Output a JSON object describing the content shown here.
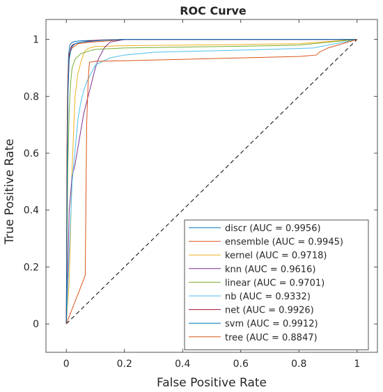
{
  "chart_data": {
    "type": "line",
    "title": "ROC Curve",
    "xlabel": "False Positive Rate",
    "ylabel": "True Positive Rate",
    "xlim": [
      -0.07,
      1.07
    ],
    "ylim": [
      -0.1,
      1.07
    ],
    "xticks": [
      0,
      0.2,
      0.4,
      0.6,
      0.8,
      1
    ],
    "xtick_labels": [
      "0",
      "0.2",
      "0.4",
      "0.6",
      "0.8",
      "1"
    ],
    "yticks": [
      0,
      0.2,
      0.4,
      0.6,
      0.8,
      1
    ],
    "ytick_labels": [
      "0",
      "0.2",
      "0.4",
      "0.6",
      "0.8",
      "1"
    ],
    "grid": false,
    "legend_position": "bottom-right",
    "reference_line": {
      "style": "dashed",
      "color": "#000000",
      "x": [
        0,
        1
      ],
      "y": [
        0,
        1
      ]
    },
    "series": [
      {
        "name": "discr (AUC = 0.9956)",
        "color": "#0072BD",
        "x": [
          0,
          0.003,
          0.005,
          0.008,
          0.012,
          0.02,
          0.03,
          0.05,
          0.1,
          0.15,
          0.2,
          0.4,
          0.7,
          1
        ],
        "y": [
          0,
          0.5,
          0.85,
          0.95,
          0.98,
          0.99,
          0.993,
          0.995,
          0.997,
          0.998,
          1,
          1,
          1,
          1
        ]
      },
      {
        "name": "ensemble (AUC = 0.9945)",
        "color": "#D95319",
        "x": [
          0,
          0.002,
          0.004,
          0.007,
          0.01,
          0.02,
          0.04,
          0.08,
          0.15,
          0.2,
          0.5,
          1
        ],
        "y": [
          0,
          0.6,
          0.8,
          0.9,
          0.95,
          0.97,
          0.985,
          0.99,
          0.995,
          1,
          1,
          1
        ]
      },
      {
        "name": "kernel (AUC = 0.9718)",
        "color": "#EDB120",
        "x": [
          0,
          0.01,
          0.02,
          0.03,
          0.04,
          0.05,
          0.06,
          0.065,
          0.07,
          0.08,
          0.1,
          0.2,
          0.4,
          0.6,
          0.8,
          1
        ],
        "y": [
          0,
          0.15,
          0.55,
          0.8,
          0.88,
          0.92,
          0.95,
          0.96,
          0.965,
          0.97,
          0.975,
          0.978,
          0.98,
          0.982,
          0.985,
          1
        ]
      },
      {
        "name": "knn (AUC = 0.9616)",
        "color": "#7E2F8E",
        "x": [
          0,
          0.005,
          0.01,
          0.02,
          0.03,
          0.04,
          0.05,
          0.06,
          0.07,
          0.08,
          0.09,
          0.1,
          0.11,
          0.12,
          0.13,
          0.14,
          0.15,
          0.2,
          1
        ],
        "y": [
          0,
          0.2,
          0.4,
          0.52,
          0.56,
          0.62,
          0.68,
          0.74,
          0.78,
          0.82,
          0.86,
          0.9,
          0.93,
          0.95,
          0.97,
          0.98,
          0.99,
          1,
          1
        ]
      },
      {
        "name": "linear (AUC = 0.9701)",
        "color": "#77AC30",
        "x": [
          0,
          0.005,
          0.01,
          0.015,
          0.02,
          0.03,
          0.05,
          0.08,
          0.1,
          0.2,
          0.4,
          0.6,
          0.8,
          1
        ],
        "y": [
          0,
          0.55,
          0.75,
          0.85,
          0.9,
          0.93,
          0.95,
          0.96,
          0.965,
          0.97,
          0.973,
          0.976,
          0.98,
          1
        ]
      },
      {
        "name": "nb (AUC = 0.9332)",
        "color": "#4DBEEE",
        "x": [
          0,
          0.02,
          0.04,
          0.05,
          0.06,
          0.07,
          0.08,
          0.09,
          0.1,
          0.12,
          0.15,
          0.2,
          0.3,
          0.5,
          0.7,
          0.85,
          1
        ],
        "y": [
          0,
          0.5,
          0.72,
          0.78,
          0.82,
          0.85,
          0.87,
          0.89,
          0.91,
          0.92,
          0.935,
          0.945,
          0.955,
          0.96,
          0.965,
          0.97,
          1
        ]
      },
      {
        "name": "net (AUC = 0.9926)",
        "color": "#A2142F",
        "x": [
          0,
          0.003,
          0.006,
          0.01,
          0.015,
          0.02,
          0.03,
          0.05,
          0.08,
          0.12,
          0.2,
          0.5,
          1
        ],
        "y": [
          0,
          0.6,
          0.85,
          0.94,
          0.97,
          0.98,
          0.985,
          0.99,
          0.995,
          0.998,
          1,
          1,
          1
        ]
      },
      {
        "name": "svm (AUC = 0.9912)",
        "color": "#0072BD",
        "x": [
          0,
          0.003,
          0.006,
          0.01,
          0.015,
          0.02,
          0.03,
          0.05,
          0.08,
          0.12,
          0.2,
          0.5,
          1
        ],
        "y": [
          0,
          0.55,
          0.82,
          0.93,
          0.96,
          0.975,
          0.985,
          0.99,
          0.993,
          0.997,
          1,
          1,
          1
        ]
      },
      {
        "name": "tree (AUC = 0.8847)",
        "color": "#D95319",
        "x": [
          0,
          0.065,
          0.07,
          0.075,
          0.078,
          0.08,
          0.1,
          0.2,
          0.4,
          0.6,
          0.8,
          0.86,
          0.87,
          0.9,
          1
        ],
        "y": [
          0,
          0.17,
          0.7,
          0.85,
          0.9,
          0.92,
          0.923,
          0.925,
          0.93,
          0.935,
          0.94,
          0.945,
          0.955,
          0.97,
          1
        ]
      }
    ]
  }
}
